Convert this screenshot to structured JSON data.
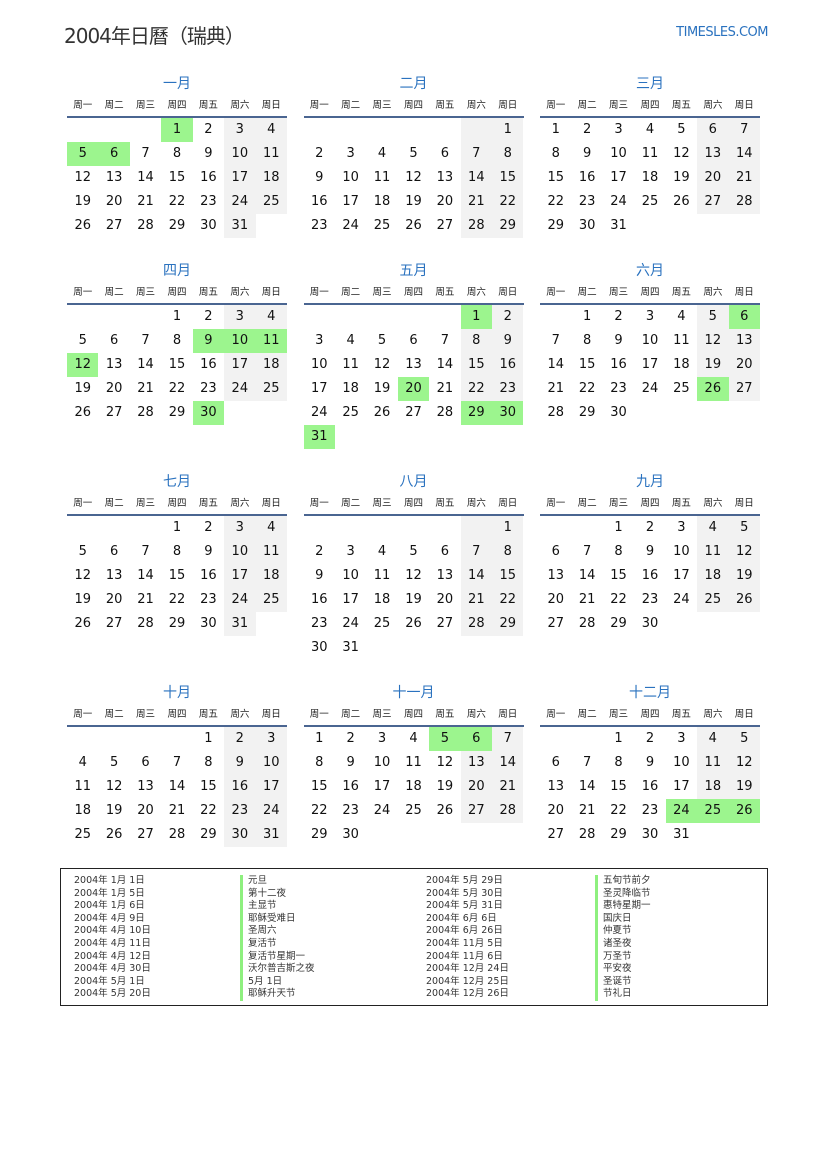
{
  "header": {
    "title": "2004年日曆（瑞典）",
    "site": "TIMESLES.COM"
  },
  "year": 2004,
  "weekdays": [
    "周一",
    "周二",
    "周三",
    "周四",
    "周五",
    "周六",
    "周日"
  ],
  "months": [
    "一月",
    "二月",
    "三月",
    "四月",
    "五月",
    "六月",
    "七月",
    "八月",
    "九月",
    "十月",
    "十一月",
    "十二月"
  ],
  "colors": {
    "accent": "#2a72bf",
    "holiday": "#9cf58e",
    "weekend": "#f2f2f2"
  },
  "holidays": [
    {
      "month": 1,
      "day": 1,
      "date": "2004年 1月 1日",
      "name": "元旦"
    },
    {
      "month": 1,
      "day": 5,
      "date": "2004年 1月 5日",
      "name": "第十二夜"
    },
    {
      "month": 1,
      "day": 6,
      "date": "2004年 1月 6日",
      "name": "主显节"
    },
    {
      "month": 4,
      "day": 9,
      "date": "2004年 4月 9日",
      "name": "耶稣受难日"
    },
    {
      "month": 4,
      "day": 10,
      "date": "2004年 4月 10日",
      "name": "圣周六"
    },
    {
      "month": 4,
      "day": 11,
      "date": "2004年 4月 11日",
      "name": "复活节"
    },
    {
      "month": 4,
      "day": 12,
      "date": "2004年 4月 12日",
      "name": "复活节星期一"
    },
    {
      "month": 4,
      "day": 30,
      "date": "2004年 4月 30日",
      "name": "沃尔普吉斯之夜"
    },
    {
      "month": 5,
      "day": 1,
      "date": "2004年 5月 1日",
      "name": "5月 1日"
    },
    {
      "month": 5,
      "day": 20,
      "date": "2004年 5月 20日",
      "name": "耶稣升天节"
    },
    {
      "month": 5,
      "day": 29,
      "date": "2004年 5月 29日",
      "name": "五旬节前夕"
    },
    {
      "month": 5,
      "day": 30,
      "date": "2004年 5月 30日",
      "name": "圣灵降临节"
    },
    {
      "month": 5,
      "day": 31,
      "date": "2004年 5月 31日",
      "name": "惠特星期一"
    },
    {
      "month": 6,
      "day": 6,
      "date": "2004年 6月 6日",
      "name": "国庆日"
    },
    {
      "month": 6,
      "day": 26,
      "date": "2004年 6月 26日",
      "name": "仲夏节"
    },
    {
      "month": 11,
      "day": 5,
      "date": "2004年 11月 5日",
      "name": "诸圣夜"
    },
    {
      "month": 11,
      "day": 6,
      "date": "2004年 11月 6日",
      "name": "万圣节"
    },
    {
      "month": 12,
      "day": 24,
      "date": "2004年 12月 24日",
      "name": "平安夜"
    },
    {
      "month": 12,
      "day": 25,
      "date": "2004年 12月 25日",
      "name": "圣诞节"
    },
    {
      "month": 12,
      "day": 26,
      "date": "2004年 12月 26日",
      "name": "节礼日"
    }
  ]
}
